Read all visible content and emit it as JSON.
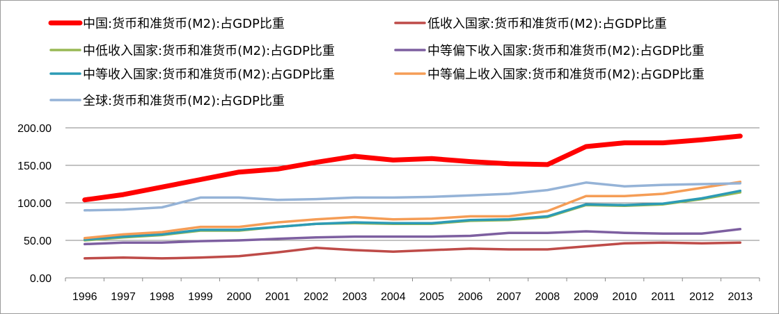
{
  "chart_data": {
    "type": "line",
    "title": "",
    "xlabel": "",
    "ylabel": "",
    "x": [
      "1996",
      "1997",
      "1998",
      "1999",
      "2000",
      "2001",
      "2002",
      "2003",
      "2004",
      "2005",
      "2006",
      "2007",
      "2008",
      "2009",
      "2010",
      "2011",
      "2012",
      "2013"
    ],
    "y_ticks": [
      "0.00",
      "50.00",
      "100.00",
      "150.00",
      "200.00"
    ],
    "ylim": [
      0,
      200
    ],
    "grid": "horizontal",
    "legend_position": "top",
    "series": [
      {
        "name": "中国:货币和准货币(M2):占GDP比重",
        "color": "#ff0000",
        "emphasis": true,
        "values": [
          104,
          111,
          121,
          131,
          141,
          145,
          154,
          162,
          157,
          159,
          155,
          152,
          151,
          175,
          180,
          180,
          184,
          189
        ]
      },
      {
        "name": "低收入国家:货币和准货币(M2):占GDP比重",
        "color": "#be4b48",
        "values": [
          26,
          27,
          26,
          27,
          29,
          34,
          40,
          37,
          35,
          37,
          39,
          38,
          38,
          42,
          46,
          47,
          46,
          47
        ]
      },
      {
        "name": "中低收入国家:货币和准货币(M2):占GDP比重",
        "color": "#98b954",
        "values": [
          50,
          54,
          57,
          63,
          63,
          68,
          72,
          73,
          72,
          72,
          76,
          77,
          81,
          97,
          96,
          98,
          105,
          114
        ]
      },
      {
        "name": "中等偏下收入国家:货币和准货币(M2):占GDP比重",
        "color": "#7d5fa0",
        "values": [
          45,
          47,
          47,
          49,
          50,
          52,
          54,
          55,
          55,
          55,
          56,
          60,
          60,
          62,
          60,
          59,
          59,
          65
        ]
      },
      {
        "name": "中等收入国家:货币和准货币(M2):占GDP比重",
        "color": "#2c9bb5",
        "values": [
          51,
          55,
          58,
          64,
          64,
          68,
          72,
          74,
          73,
          73,
          77,
          78,
          82,
          98,
          97,
          99,
          106,
          116
        ]
      },
      {
        "name": "中等偏上收入国家:货币和准货币(M2):占GDP比重",
        "color": "#f59d56",
        "values": [
          53,
          58,
          61,
          68,
          68,
          74,
          78,
          81,
          78,
          79,
          82,
          82,
          89,
          109,
          109,
          112,
          120,
          128
        ]
      },
      {
        "name": "全球:货币和准货币(M2):占GDP比重",
        "color": "#95b3d7",
        "values": [
          90,
          91,
          94,
          107,
          107,
          104,
          105,
          107,
          107,
          108,
          110,
          112,
          117,
          127,
          122,
          124,
          125,
          126
        ]
      }
    ]
  }
}
